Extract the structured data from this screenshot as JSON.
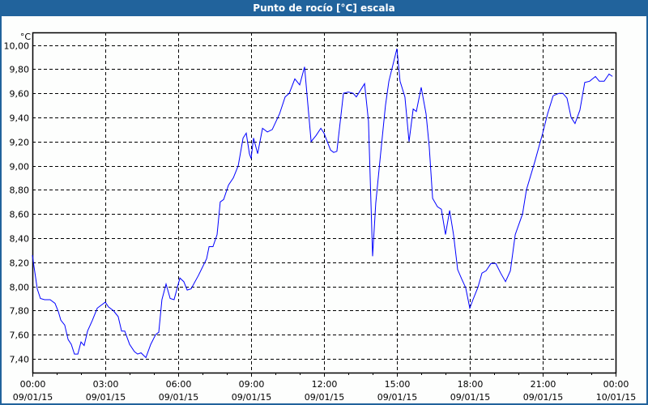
{
  "window": {
    "title": "Punto de rocío [°C] escala"
  },
  "colors": {
    "titlebar": "#21639c",
    "series": "#0000ff",
    "grid": "#000000"
  },
  "chart_data": {
    "type": "line",
    "title": "Punto de rocío [°C] escala",
    "ylabel": "°C",
    "xlabel": "",
    "ylim": [
      7.286,
      10.105
    ],
    "xlim": [
      0,
      24
    ],
    "grid": true,
    "y_ticks": [
      7.4,
      7.6,
      7.8,
      8.0,
      8.2,
      8.4,
      8.6,
      8.8,
      9.0,
      9.2,
      9.4,
      9.6,
      9.8,
      10.0
    ],
    "y_tick_labels": [
      "7,40",
      "7,60",
      "7,80",
      "8,00",
      "8,20",
      "8,40",
      "8,60",
      "8,80",
      "9,00",
      "9,20",
      "9,40",
      "9,60",
      "9,80",
      "10,00"
    ],
    "x_ticks": [
      0,
      3,
      6,
      9,
      12,
      15,
      18,
      21,
      24
    ],
    "x_tick_labels": [
      [
        "00:00",
        "09/01/15"
      ],
      [
        "03:00",
        "09/01/15"
      ],
      [
        "06:00",
        "09/01/15"
      ],
      [
        "09:00",
        "09/01/15"
      ],
      [
        "12:00",
        "09/01/15"
      ],
      [
        "15:00",
        "09/01/15"
      ],
      [
        "18:00",
        "09/01/15"
      ],
      [
        "21:00",
        "09/01/15"
      ],
      [
        "00:00",
        "10/01/15"
      ]
    ],
    "series": [
      {
        "name": "Punto de rocío",
        "x": [
          0,
          0.07,
          0.2,
          0.33,
          0.5,
          0.73,
          0.93,
          1.07,
          1.17,
          1.33,
          1.47,
          1.6,
          1.73,
          1.87,
          2.0,
          2.13,
          2.27,
          2.47,
          2.67,
          3.0,
          3.13,
          3.33,
          3.53,
          3.67,
          3.8,
          4.0,
          4.2,
          4.33,
          4.47,
          4.67,
          4.87,
          5.07,
          5.2,
          5.33,
          5.5,
          5.67,
          5.83,
          6.07,
          6.23,
          6.37,
          6.53,
          6.83,
          7.17,
          7.27,
          7.43,
          7.6,
          7.73,
          7.87,
          8.07,
          8.27,
          8.47,
          8.67,
          8.8,
          8.93,
          9.0,
          9.1,
          9.27,
          9.47,
          9.67,
          9.87,
          10.17,
          10.4,
          10.57,
          10.8,
          11.0,
          11.2,
          11.47,
          11.67,
          11.87,
          12.0,
          12.27,
          12.4,
          12.53,
          12.8,
          13.0,
          13.2,
          13.33,
          13.67,
          13.83,
          14.0,
          14.13,
          14.33,
          14.53,
          14.67,
          15.0,
          15.13,
          15.33,
          15.5,
          15.67,
          15.8,
          16.0,
          16.2,
          16.33,
          16.47,
          16.67,
          16.83,
          17.0,
          17.17,
          17.33,
          17.5,
          17.67,
          17.83,
          18.0,
          18.13,
          18.33,
          18.5,
          18.67,
          18.87,
          19.07,
          19.27,
          19.47,
          19.67,
          19.87,
          20.17,
          20.33,
          20.67,
          21.0,
          21.2,
          21.43,
          21.67,
          21.83,
          22.0,
          22.17,
          22.33,
          22.53,
          22.73,
          22.93,
          23.17,
          23.33,
          23.53,
          23.73,
          23.87
        ],
        "y": [
          8.26,
          8.16,
          7.98,
          7.9,
          7.89,
          7.89,
          7.86,
          7.79,
          7.72,
          7.68,
          7.56,
          7.52,
          7.44,
          7.44,
          7.54,
          7.51,
          7.63,
          7.72,
          7.82,
          7.87,
          7.83,
          7.8,
          7.75,
          7.63,
          7.63,
          7.52,
          7.46,
          7.44,
          7.45,
          7.41,
          7.52,
          7.6,
          7.62,
          7.89,
          8.02,
          7.9,
          7.89,
          8.07,
          8.04,
          7.97,
          7.98,
          8.09,
          8.23,
          8.33,
          8.33,
          8.43,
          8.7,
          8.72,
          8.84,
          8.9,
          9.0,
          9.23,
          9.27,
          9.1,
          9.06,
          9.23,
          9.1,
          9.31,
          9.28,
          9.3,
          9.43,
          9.57,
          9.6,
          9.72,
          9.67,
          9.82,
          9.2,
          9.25,
          9.31,
          9.27,
          9.13,
          9.11,
          9.12,
          9.6,
          9.61,
          9.6,
          9.57,
          9.68,
          9.37,
          8.25,
          8.69,
          9.1,
          9.5,
          9.7,
          9.97,
          9.7,
          9.57,
          9.2,
          9.47,
          9.45,
          9.65,
          9.43,
          9.16,
          8.73,
          8.66,
          8.64,
          8.43,
          8.63,
          8.43,
          8.14,
          8.06,
          7.99,
          7.82,
          7.89,
          7.99,
          8.11,
          8.13,
          8.19,
          8.19,
          8.11,
          8.04,
          8.13,
          8.43,
          8.6,
          8.8,
          9.03,
          9.27,
          9.43,
          9.58,
          9.6,
          9.6,
          9.56,
          9.4,
          9.35,
          9.46,
          9.69,
          9.7,
          9.74,
          9.7,
          9.7,
          9.76,
          9.74
        ]
      }
    ]
  }
}
